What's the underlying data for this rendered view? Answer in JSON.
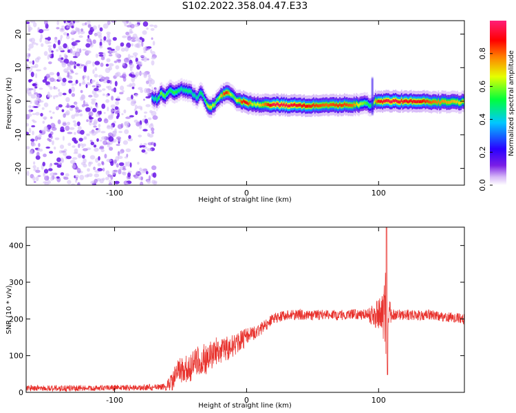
{
  "title": "S102.2022.358.04.47.E33",
  "chart_data": [
    {
      "type": "heatmap",
      "xlabel": "Height of straight line (km)",
      "ylabel": "Frequency (Hz)",
      "xlim": [
        -167,
        165
      ],
      "ylim": [
        -25,
        24
      ],
      "x_ticks": [
        -100,
        0,
        100
      ],
      "y_ticks": [
        -20,
        -10,
        0,
        10,
        20
      ],
      "grid": false,
      "colorbar": {
        "label": "Normalized spectral amplitude",
        "range": [
          0.0,
          1.0
        ],
        "ticks": [
          "0.0",
          "0.2",
          "0.4",
          "0.6",
          "0.8"
        ],
        "colormap": [
          "#ffffff",
          "#d7b8f7",
          "#7a1ee6",
          "#2a00ff",
          "#00c8ff",
          "#00ff3c",
          "#e6ff00",
          "#ff8000",
          "#ff0000",
          "#ff1e78"
        ]
      },
      "noise_region_x": [
        -167,
        -72
      ],
      "ridge": {
        "x": [
          -72,
          -68,
          -65,
          -62,
          -58,
          -55,
          -50,
          -45,
          -42,
          -38,
          -35,
          -32,
          -30,
          -28,
          -25,
          -22,
          -20,
          -17,
          -15,
          -12,
          -10,
          -7,
          -4,
          0,
          5,
          10,
          20,
          30,
          40,
          50,
          60,
          70,
          80,
          85,
          90,
          93,
          95,
          97,
          100,
          110,
          120,
          130,
          140,
          150,
          160,
          165
        ],
        "freq": [
          1,
          0.5,
          2.5,
          1.5,
          3.5,
          2.5,
          3.5,
          3,
          2.5,
          1,
          2.5,
          0.5,
          -1.5,
          -2,
          -1,
          0.5,
          1.5,
          2.5,
          2.5,
          2,
          1,
          0,
          0,
          -0.5,
          -1,
          -1,
          -1,
          -1.2,
          -1.2,
          -1.3,
          -1.2,
          -1.1,
          -1,
          -1,
          -0.5,
          -1.5,
          -1.2,
          0,
          0,
          0,
          0,
          0,
          -0.3,
          -0.2,
          -0.3,
          -0.2
        ],
        "amplitude": [
          0.4,
          0.5,
          0.6,
          0.55,
          0.5,
          0.55,
          0.45,
          0.5,
          0.45,
          0.45,
          0.5,
          0.5,
          0.65,
          0.7,
          0.6,
          0.55,
          0.7,
          0.85,
          0.85,
          0.6,
          0.55,
          0.7,
          0.85,
          0.9,
          0.6,
          0.7,
          0.95,
          0.95,
          0.9,
          0.85,
          0.8,
          0.85,
          0.8,
          0.65,
          0.55,
          0.5,
          0.45,
          0.75,
          0.9,
          0.95,
          0.9,
          0.9,
          0.8,
          0.75,
          0.7,
          0.7
        ]
      }
    },
    {
      "type": "line",
      "xlabel": "Height of straight line (km)",
      "ylabel": "SNR (10 * v/v)",
      "xlim": [
        -167,
        165
      ],
      "ylim": [
        0,
        450
      ],
      "x_ticks": [
        -100,
        0,
        100
      ],
      "y_ticks": [
        0,
        100,
        200,
        300,
        400
      ],
      "grid": false,
      "line_color": "#e8312c",
      "envelope": {
        "x": [
          -167,
          -140,
          -110,
          -80,
          -62,
          -56,
          -52,
          -45,
          -40,
          -35,
          -30,
          -25,
          -20,
          -15,
          -10,
          -5,
          0,
          5,
          10,
          15,
          20,
          25,
          30,
          40,
          50,
          60,
          70,
          80,
          90,
          95,
          100,
          103,
          105,
          106,
          107,
          110,
          120,
          130,
          140,
          150,
          160,
          165
        ],
        "snr": [
          12,
          11,
          12,
          13,
          14,
          30,
          65,
          60,
          75,
          95,
          85,
          110,
          115,
          118,
          125,
          140,
          150,
          160,
          170,
          185,
          200,
          205,
          210,
          212,
          210,
          212,
          210,
          214,
          212,
          210,
          212,
          212,
          230,
          140,
          215,
          212,
          211,
          210,
          212,
          205,
          203,
          200
        ],
        "noise": [
          8,
          8,
          8,
          8,
          9,
          25,
          35,
          40,
          40,
          45,
          42,
          40,
          38,
          35,
          32,
          28,
          25,
          20,
          18,
          15,
          14,
          14,
          14,
          14,
          14,
          14,
          14,
          14,
          14,
          30,
          40,
          55,
          120,
          90,
          60,
          15,
          14,
          14,
          14,
          14,
          14,
          14
        ]
      },
      "peak": {
        "x": 106,
        "max": 450,
        "min": 48
      }
    }
  ]
}
